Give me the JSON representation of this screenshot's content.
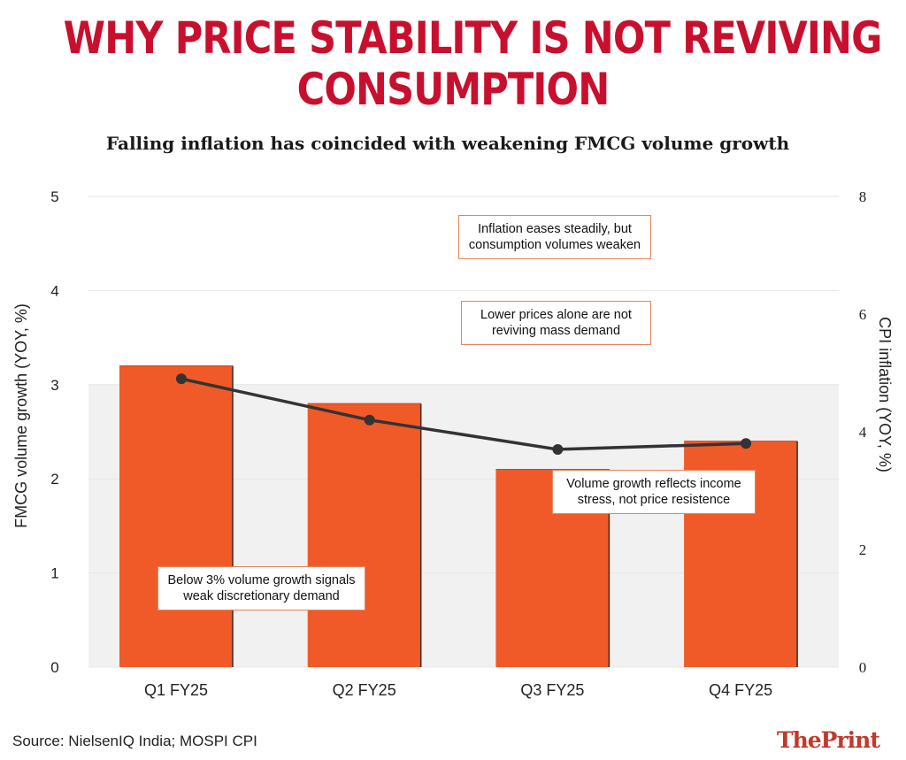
{
  "title_line1": "WHY PRICE STABILITY IS NOT REVIVING",
  "title_line2": "CONSUMPTION",
  "subtitle": "Falling inflation has coincided with weakening FMCG volume growth",
  "source": "Source: NielsenIQ India; MOSPI CPI",
  "logo": "ThePrint",
  "colors": {
    "bar": "#f05a28",
    "line": "#333333",
    "title": "#c8102e",
    "band": "#f1f1f1",
    "annotation_border": "#e8845a"
  },
  "annotations": [
    {
      "line1": "Inflation eases steadily, but",
      "line2": "consumption volumes weaken"
    },
    {
      "line1": "Lower prices alone are not",
      "line2": "reviving mass demand"
    },
    {
      "line1": "Volume growth reflects income",
      "line2": "stress, not price resistence"
    },
    {
      "line1": "Below 3% volume growth signals",
      "line2": "weak discretionary demand"
    }
  ],
  "chart_data": {
    "type": "bar",
    "categories": [
      "Q1 FY25",
      "Q2 FY25",
      "Q3 FY25",
      "Q4 FY25"
    ],
    "series": [
      {
        "type": "bar",
        "axis": "left",
        "values": [
          3.2,
          2.8,
          2.1,
          2.4
        ]
      },
      {
        "type": "line",
        "axis": "right",
        "values": [
          4.9,
          4.2,
          3.7,
          3.8
        ]
      }
    ],
    "ylabel": "FMCG volume growth (YOY, %)",
    "ylabel_right": "CPI inflation (YOY, %)",
    "ylim": [
      0,
      5
    ],
    "ylim_right": [
      0,
      8
    ],
    "yticks": [
      0,
      1,
      2,
      3,
      4,
      5
    ],
    "yticks_right": [
      0,
      2,
      4,
      6,
      8
    ],
    "shaded_band": [
      0,
      3
    ],
    "grid": true,
    "legend": "none"
  }
}
